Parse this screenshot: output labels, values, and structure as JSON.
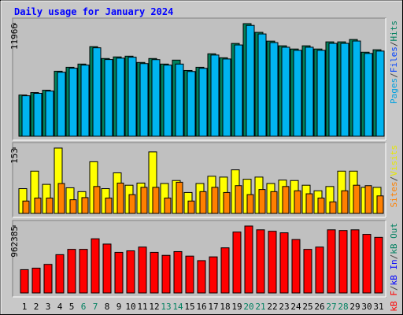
{
  "chart_data": [
    {
      "type": "bar",
      "title": "Daily usage for January 2024",
      "ylim": [
        0,
        11966
      ],
      "yticks": [
        11966
      ],
      "separator": "/",
      "legend": [
        {
          "name": "Pages",
          "color": "#00a0e0"
        },
        {
          "name": "Files",
          "color": "#0040ff"
        },
        {
          "name": "Hits",
          "color": "#008060"
        }
      ],
      "series": [
        {
          "color": "#00805c",
          "values": [
            4380,
            4640,
            4890,
            6910,
            7330,
            7670,
            9520,
            8260,
            8430,
            8510,
            7840,
            8260,
            7670,
            8090,
            6990,
            7330,
            8760,
            8340,
            9860,
            11966,
            11040,
            10110,
            9610,
            9270,
            9610,
            9270,
            10030,
            10030,
            10280,
            8930,
            9190
          ]
        },
        {
          "color": "#00b4f0",
          "values": [
            4300,
            4560,
            4800,
            6800,
            7230,
            7560,
            9400,
            8150,
            8300,
            8400,
            7720,
            8140,
            7560,
            7670,
            6880,
            7220,
            8630,
            8210,
            9700,
            11780,
            10870,
            9950,
            9460,
            9130,
            9460,
            9130,
            9870,
            9870,
            10120,
            8800,
            9050
          ]
        }
      ]
    },
    {
      "type": "bar",
      "ylim": [
        0,
        153
      ],
      "yticks": [
        153
      ],
      "separator": "/",
      "legend": [
        {
          "name": "Sites",
          "color": "#ff8000"
        },
        {
          "name": "Visits",
          "color": "#e8e800"
        }
      ],
      "series": [
        {
          "color": "#ffff00",
          "values": [
            58,
            99,
            68,
            153,
            60,
            51,
            121,
            58,
            95,
            66,
            71,
            144,
            70,
            77,
            49,
            70,
            87,
            85,
            102,
            80,
            85,
            70,
            78,
            77,
            66,
            53,
            63,
            99,
            99,
            61,
            61
          ]
        },
        {
          "color": "#ff8000",
          "values": [
            29,
            36,
            36,
            70,
            32,
            37,
            63,
            36,
            71,
            44,
            61,
            61,
            36,
            73,
            29,
            51,
            61,
            49,
            65,
            44,
            56,
            51,
            63,
            53,
            46,
            36,
            27,
            53,
            66,
            65,
            41
          ]
        }
      ]
    },
    {
      "type": "bar",
      "ylim": [
        0,
        962385
      ],
      "yticks": [
        962385
      ],
      "separator": "/",
      "legend": [
        {
          "name": "kB F",
          "color": "#ff0000"
        },
        {
          "name": "kB In",
          "color": "#0000ff"
        },
        {
          "name": "kB Out",
          "color": "#008060"
        }
      ],
      "series": [
        {
          "color": "#ff0000",
          "values": [
            335000,
            357000,
            411000,
            551000,
            627000,
            627000,
            779000,
            703000,
            584000,
            606000,
            660000,
            584000,
            541000,
            595000,
            530000,
            465000,
            519000,
            649000,
            876000,
            962385,
            908000,
            887000,
            865000,
            768000,
            627000,
            660000,
            908000,
            898000,
            908000,
            843000,
            800000
          ]
        }
      ],
      "categories": [
        "1",
        "2",
        "3",
        "4",
        "5",
        "6",
        "7",
        "8",
        "9",
        "10",
        "11",
        "12",
        "13",
        "14",
        "15",
        "16",
        "17",
        "18",
        "19",
        "20",
        "21",
        "22",
        "23",
        "24",
        "25",
        "26",
        "27",
        "28",
        "29",
        "30",
        "31"
      ],
      "category_colors": [
        "#000000",
        "#000000",
        "#000000",
        "#000000",
        "#000000",
        "#008060",
        "#008060",
        "#000000",
        "#000000",
        "#000000",
        "#000000",
        "#000000",
        "#008060",
        "#008060",
        "#000000",
        "#000000",
        "#000000",
        "#000000",
        "#000000",
        "#008060",
        "#008060",
        "#000000",
        "#000000",
        "#000000",
        "#000000",
        "#000000",
        "#008060",
        "#008060",
        "#000000",
        "#000000",
        "#000000"
      ]
    }
  ]
}
